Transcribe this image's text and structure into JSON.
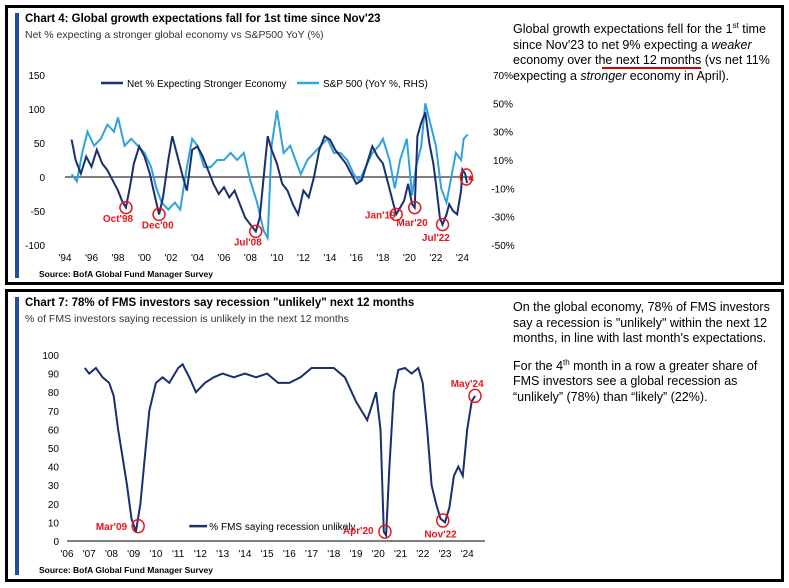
{
  "panel1": {
    "title": "Chart 4: Global growth expectations fall for 1st time since Nov'23",
    "subtitle": "Net % expecting a stronger global economy vs S&P500 YoY (%)",
    "source": "Source: BofA Global Fund Manager Survey",
    "note_parts": [
      "Global growth expectations fell for the 1",
      "st",
      " time since Nov'23 to ",
      "net 9% expecting a ",
      "weaker",
      " economy over the next 12 months",
      " (vs net 11% expecting a ",
      "stronger",
      " economy in April)."
    ]
  },
  "panel2": {
    "title": "Chart 7: 78% of FMS investors say recession \"unlikely\" next 12 months",
    "subtitle": "% of FMS investors saying recession is unlikely in the next 12 months",
    "source": "Source: BofA Global Fund Manager Survey",
    "note1_parts": [
      "On the global economy, ",
      "78% of FMS investors say a recession is \"unlikely\" within the next 12 months",
      ", in line with last month's expectations."
    ],
    "note2_parts": [
      "For the 4",
      "th",
      " month in a row a greater share of FMS investors see a global recession as “unlikely” (78%) than “likely” (22%)."
    ]
  },
  "colors": {
    "navy": "#1a2f6e",
    "light_blue": "#2ea3dc",
    "red": "#e8161b",
    "accent_bar": "#1f4e9c"
  },
  "chart_data": [
    {
      "type": "line",
      "title": "Chart 4: Global growth expectations fall for 1st time since Nov'23",
      "x_tick_labels": [
        "'94",
        "'96",
        "'98",
        "'00",
        "'02",
        "'04",
        "'06",
        "'08",
        "'10",
        "'12",
        "'14",
        "'16",
        "'18",
        "'20",
        "'22",
        "'24"
      ],
      "x_range": [
        1994,
        2024.8
      ],
      "y_left_ticks": [
        150,
        100,
        50,
        0,
        -50,
        -100
      ],
      "y_left_range": [
        -100,
        150
      ],
      "y_right_ticks": [
        "70%",
        "50%",
        "30%",
        "10%",
        "-10%",
        "-30%",
        "-50%"
      ],
      "y_right_range": [
        -50,
        70
      ],
      "legend_position": "top",
      "series": [
        {
          "name": "Net % Expecting Stronger Economy",
          "axis": "left",
          "color": "#1a2f6e",
          "points": [
            [
              1994.5,
              55
            ],
            [
              1994.8,
              25
            ],
            [
              1995.2,
              5
            ],
            [
              1995.6,
              30
            ],
            [
              1996.0,
              15
            ],
            [
              1996.4,
              40
            ],
            [
              1996.8,
              20
            ],
            [
              1997.2,
              10
            ],
            [
              1997.6,
              -5
            ],
            [
              1998.0,
              -20
            ],
            [
              1998.3,
              -35
            ],
            [
              1998.6,
              -45
            ],
            [
              1998.9,
              -15
            ],
            [
              1999.2,
              20
            ],
            [
              1999.6,
              45
            ],
            [
              2000.0,
              30
            ],
            [
              2000.4,
              5
            ],
            [
              2000.8,
              -30
            ],
            [
              2001.1,
              -55
            ],
            [
              2001.4,
              -30
            ],
            [
              2001.8,
              25
            ],
            [
              2002.1,
              60
            ],
            [
              2002.5,
              30
            ],
            [
              2002.9,
              0
            ],
            [
              2003.2,
              -20
            ],
            [
              2003.6,
              40
            ],
            [
              2004.0,
              45
            ],
            [
              2004.4,
              30
            ],
            [
              2004.8,
              10
            ],
            [
              2005.2,
              -10
            ],
            [
              2005.6,
              -25
            ],
            [
              2006.0,
              -15
            ],
            [
              2006.4,
              -30
            ],
            [
              2006.8,
              -20
            ],
            [
              2007.2,
              -40
            ],
            [
              2007.6,
              -60
            ],
            [
              2008.0,
              -70
            ],
            [
              2008.4,
              -80
            ],
            [
              2008.7,
              -60
            ],
            [
              2009.0,
              0
            ],
            [
              2009.3,
              60
            ],
            [
              2009.6,
              40
            ],
            [
              2010.0,
              20
            ],
            [
              2010.4,
              -10
            ],
            [
              2010.8,
              -20
            ],
            [
              2011.2,
              -40
            ],
            [
              2011.6,
              -55
            ],
            [
              2012.0,
              -20
            ],
            [
              2012.4,
              -30
            ],
            [
              2012.8,
              0
            ],
            [
              2013.2,
              40
            ],
            [
              2013.6,
              60
            ],
            [
              2014.0,
              55
            ],
            [
              2014.4,
              40
            ],
            [
              2014.8,
              30
            ],
            [
              2015.2,
              20
            ],
            [
              2015.6,
              5
            ],
            [
              2016.0,
              -10
            ],
            [
              2016.4,
              -5
            ],
            [
              2016.8,
              20
            ],
            [
              2017.2,
              45
            ],
            [
              2017.6,
              30
            ],
            [
              2018.0,
              20
            ],
            [
              2018.4,
              -10
            ],
            [
              2018.8,
              -40
            ],
            [
              2019.0,
              -55
            ],
            [
              2019.3,
              -45
            ],
            [
              2019.6,
              -35
            ],
            [
              2019.9,
              -10
            ],
            [
              2020.2,
              -40
            ],
            [
              2020.4,
              -45
            ],
            [
              2020.6,
              60
            ],
            [
              2020.9,
              80
            ],
            [
              2021.2,
              95
            ],
            [
              2021.5,
              50
            ],
            [
              2021.8,
              20
            ],
            [
              2022.0,
              -10
            ],
            [
              2022.3,
              -60
            ],
            [
              2022.5,
              -70
            ],
            [
              2022.8,
              -55
            ],
            [
              2023.0,
              -40
            ],
            [
              2023.3,
              -50
            ],
            [
              2023.6,
              -55
            ],
            [
              2023.9,
              -20
            ],
            [
              2024.0,
              11
            ],
            [
              2024.2,
              5
            ],
            [
              2024.35,
              -9
            ]
          ]
        },
        {
          "name": "S&P 500 (YoY %, RHS)",
          "axis": "right",
          "color": "#2ea3dc",
          "points": [
            [
              1994.5,
              0
            ],
            [
              1994.9,
              -5
            ],
            [
              1995.3,
              15
            ],
            [
              1995.7,
              30
            ],
            [
              1996.2,
              20
            ],
            [
              1996.7,
              25
            ],
            [
              1997.2,
              35
            ],
            [
              1997.7,
              30
            ],
            [
              1998.0,
              40
            ],
            [
              1998.5,
              20
            ],
            [
              1999.0,
              25
            ],
            [
              1999.5,
              20
            ],
            [
              2000.0,
              15
            ],
            [
              2000.5,
              5
            ],
            [
              2000.9,
              -10
            ],
            [
              2001.3,
              -20
            ],
            [
              2001.8,
              -25
            ],
            [
              2002.3,
              -20
            ],
            [
              2002.7,
              -25
            ],
            [
              2003.2,
              5
            ],
            [
              2003.6,
              25
            ],
            [
              2004.0,
              20
            ],
            [
              2004.5,
              5
            ],
            [
              2005.0,
              5
            ],
            [
              2005.5,
              10
            ],
            [
              2006.0,
              10
            ],
            [
              2006.5,
              15
            ],
            [
              2007.0,
              10
            ],
            [
              2007.5,
              15
            ],
            [
              2008.0,
              -5
            ],
            [
              2008.5,
              -20
            ],
            [
              2009.0,
              -40
            ],
            [
              2009.3,
              -45
            ],
            [
              2009.6,
              20
            ],
            [
              2010.0,
              45
            ],
            [
              2010.5,
              15
            ],
            [
              2011.0,
              20
            ],
            [
              2011.4,
              10
            ],
            [
              2011.8,
              0
            ],
            [
              2012.3,
              10
            ],
            [
              2012.8,
              15
            ],
            [
              2013.3,
              20
            ],
            [
              2013.8,
              25
            ],
            [
              2014.3,
              15
            ],
            [
              2014.8,
              15
            ],
            [
              2015.3,
              10
            ],
            [
              2015.8,
              0
            ],
            [
              2016.2,
              -5
            ],
            [
              2016.7,
              5
            ],
            [
              2017.2,
              15
            ],
            [
              2017.7,
              20
            ],
            [
              2018.0,
              25
            ],
            [
              2018.5,
              10
            ],
            [
              2018.9,
              -10
            ],
            [
              2019.3,
              10
            ],
            [
              2019.8,
              25
            ],
            [
              2020.2,
              -15
            ],
            [
              2020.5,
              5
            ],
            [
              2020.9,
              20
            ],
            [
              2021.2,
              50
            ],
            [
              2021.6,
              35
            ],
            [
              2022.0,
              20
            ],
            [
              2022.4,
              -10
            ],
            [
              2022.8,
              -20
            ],
            [
              2023.1,
              -5
            ],
            [
              2023.5,
              15
            ],
            [
              2023.9,
              10
            ],
            [
              2024.1,
              25
            ],
            [
              2024.4,
              28
            ]
          ]
        }
      ],
      "annotations": [
        "Oct'98",
        "Dec'00",
        "Jul'08",
        "Jan'19",
        "Mar'20",
        "Jul'22"
      ]
    },
    {
      "type": "line",
      "title": "Chart 7: 78% of FMS investors say recession \"unlikely\" next 12 months",
      "x_tick_labels": [
        "'06",
        "'07",
        "'08",
        "'09",
        "'10",
        "'11",
        "'12",
        "'13",
        "'14",
        "'15",
        "'16",
        "'17",
        "'18",
        "'19",
        "'20",
        "'21",
        "'22",
        "'23",
        "'24"
      ],
      "x_range": [
        2006,
        2024.8
      ],
      "y_ticks": [
        100,
        90,
        80,
        70,
        60,
        50,
        40,
        30,
        20,
        10,
        0
      ],
      "y_range": [
        0,
        100
      ],
      "legend_position": "bottom-center",
      "series": [
        {
          "name": "% FMS saying recession unlikely",
          "color": "#1a2f6e",
          "points": [
            [
              2006.8,
              93
            ],
            [
              2007.0,
              90
            ],
            [
              2007.3,
              93
            ],
            [
              2007.6,
              88
            ],
            [
              2007.9,
              85
            ],
            [
              2008.1,
              78
            ],
            [
              2008.3,
              60
            ],
            [
              2008.5,
              45
            ],
            [
              2008.7,
              30
            ],
            [
              2008.9,
              12
            ],
            [
              2009.1,
              5
            ],
            [
              2009.3,
              20
            ],
            [
              2009.5,
              45
            ],
            [
              2009.7,
              70
            ],
            [
              2010.0,
              85
            ],
            [
              2010.3,
              88
            ],
            [
              2010.6,
              85
            ],
            [
              2011.0,
              93
            ],
            [
              2011.2,
              95
            ],
            [
              2011.5,
              88
            ],
            [
              2011.8,
              80
            ],
            [
              2012.2,
              85
            ],
            [
              2012.6,
              88
            ],
            [
              2013.0,
              90
            ],
            [
              2013.5,
              88
            ],
            [
              2014.0,
              90
            ],
            [
              2014.5,
              88
            ],
            [
              2015.0,
              90
            ],
            [
              2015.5,
              85
            ],
            [
              2016.0,
              85
            ],
            [
              2016.5,
              88
            ],
            [
              2017.0,
              93
            ],
            [
              2017.5,
              93
            ],
            [
              2018.0,
              93
            ],
            [
              2018.5,
              88
            ],
            [
              2019.0,
              75
            ],
            [
              2019.5,
              65
            ],
            [
              2019.9,
              80
            ],
            [
              2020.1,
              60
            ],
            [
              2020.25,
              5
            ],
            [
              2020.35,
              3
            ],
            [
              2020.5,
              40
            ],
            [
              2020.7,
              80
            ],
            [
              2020.9,
              92
            ],
            [
              2021.2,
              93
            ],
            [
              2021.5,
              90
            ],
            [
              2021.8,
              93
            ],
            [
              2022.0,
              85
            ],
            [
              2022.2,
              60
            ],
            [
              2022.4,
              30
            ],
            [
              2022.6,
              20
            ],
            [
              2022.8,
              12
            ],
            [
              2023.0,
              10
            ],
            [
              2023.2,
              18
            ],
            [
              2023.4,
              35
            ],
            [
              2023.6,
              40
            ],
            [
              2023.8,
              35
            ],
            [
              2024.0,
              60
            ],
            [
              2024.2,
              75
            ],
            [
              2024.35,
              78
            ]
          ]
        }
      ],
      "annotations": [
        "Mar'09",
        "Apr'20",
        "Nov'22",
        "May'24"
      ]
    }
  ]
}
